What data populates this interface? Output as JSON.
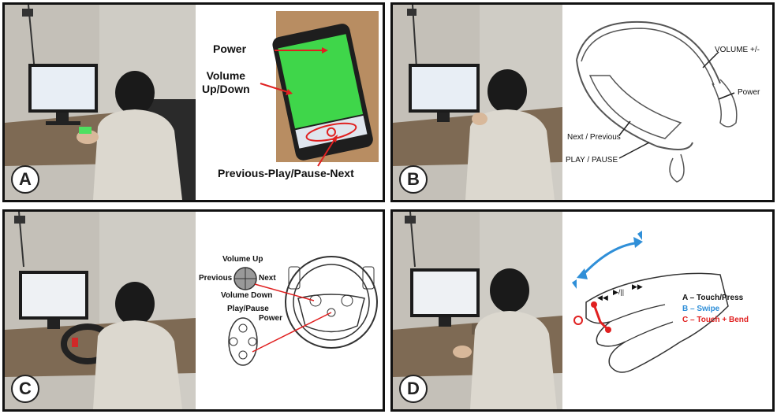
{
  "panels": [
    {
      "letter": "A",
      "labels": {
        "power": "Power",
        "volume": "Volume\nUp/Down",
        "controls": "Previous-Play/Pause-Next"
      }
    },
    {
      "letter": "B",
      "labels": {
        "volume": "VOLUME +/-",
        "power": "Power",
        "next_prev": "Next / Previous",
        "play": "PLAY / PAUSE"
      }
    },
    {
      "letter": "C",
      "labels": {
        "vol_up": "Volume Up",
        "previous": "Previous",
        "next": "Next",
        "vol_down": "Volume Down",
        "play": "Play/Pause",
        "power": "Power"
      }
    },
    {
      "letter": "D",
      "labels": {
        "a": "A – Touch/Press",
        "b": "B – Swipe",
        "c": "C – Touch + Bend"
      }
    }
  ],
  "colors": {
    "red": "#e02020",
    "blue": "#2f8fd8",
    "green": "#3fd64a",
    "wall": "#d9d6cf",
    "desk": "#8a7258",
    "shirt": "#dedbd2"
  }
}
